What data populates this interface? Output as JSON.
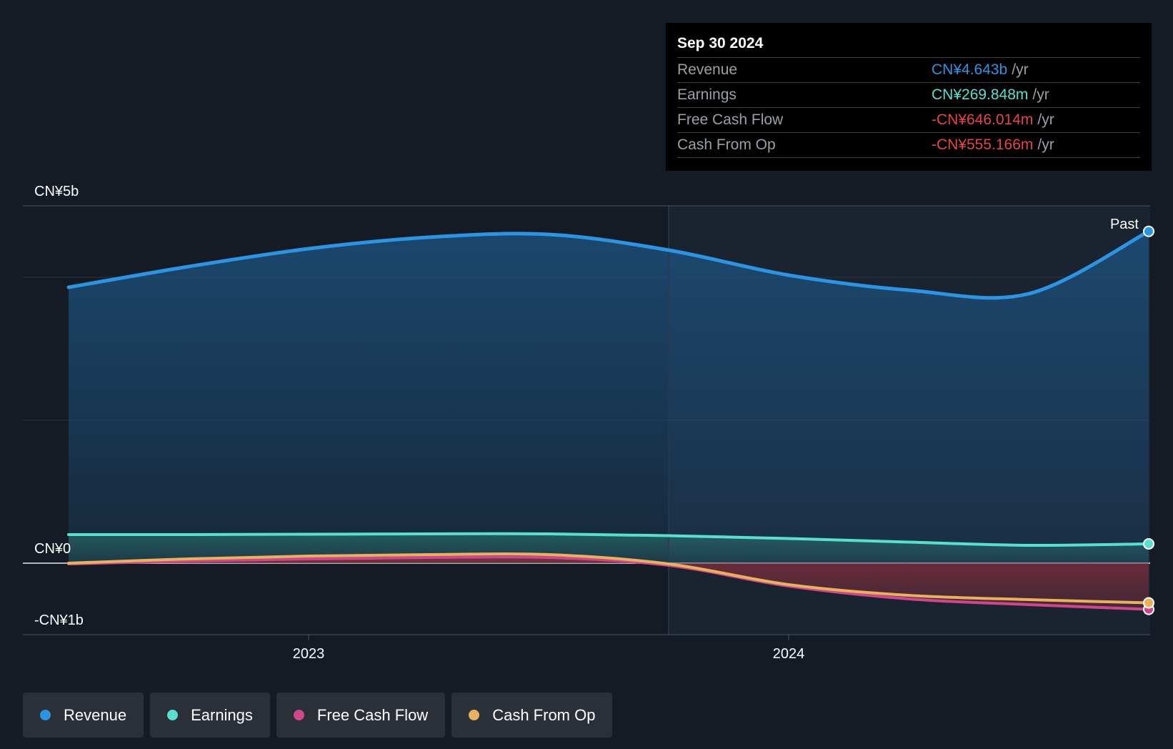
{
  "chart_data": {
    "type": "area",
    "title": "",
    "xlabel": "",
    "ylabel": "",
    "y_tick_labels": [
      "CN¥5b",
      "CN¥0",
      "-CN¥1b"
    ],
    "x_tick_labels": [
      "2023",
      "2024"
    ],
    "ylim": [
      -1000,
      5000
    ],
    "x_range": [
      "2022-06-30",
      "2024-09-30"
    ],
    "x_ticks_years": [
      2023.0,
      2024.0
    ],
    "past_label": "Past",
    "past_divider_x": 2023.75,
    "series": [
      {
        "name": "Revenue",
        "color": "#2b95e3",
        "x": [
          2022.5,
          2022.75,
          2023.0,
          2023.25,
          2023.5,
          2023.75,
          2024.0,
          2024.25,
          2024.5,
          2024.75
        ],
        "values": [
          3860,
          4150,
          4400,
          4560,
          4600,
          4380,
          4030,
          3820,
          3770,
          4643
        ]
      },
      {
        "name": "Earnings",
        "color": "#58e0cf",
        "x": [
          2022.5,
          2022.75,
          2023.0,
          2023.25,
          2023.5,
          2023.75,
          2024.0,
          2024.25,
          2024.5,
          2024.75
        ],
        "values": [
          400,
          400,
          405,
          410,
          410,
          385,
          345,
          295,
          250,
          270
        ]
      },
      {
        "name": "Free Cash Flow",
        "color": "#d0468c",
        "x": [
          2022.5,
          2022.75,
          2023.0,
          2023.25,
          2023.5,
          2023.75,
          2024.0,
          2024.25,
          2024.5,
          2024.75
        ],
        "values": [
          -10,
          30,
          60,
          80,
          80,
          -30,
          -320,
          -500,
          -580,
          -646
        ]
      },
      {
        "name": "Cash From Op",
        "color": "#e8b15c",
        "x": [
          2022.5,
          2022.75,
          2023.0,
          2023.25,
          2023.5,
          2023.75,
          2024.0,
          2024.25,
          2024.5,
          2024.75
        ],
        "values": [
          0,
          60,
          100,
          120,
          120,
          -10,
          -300,
          -450,
          -510,
          -555
        ]
      }
    ]
  },
  "tooltip": {
    "date": "Sep 30 2024",
    "rows": [
      {
        "name": "Revenue",
        "value": "CN¥4.643b",
        "unit": "/yr",
        "color": "#2b95e3"
      },
      {
        "name": "Earnings",
        "value": "CN¥269.848m",
        "unit": "/yr",
        "color": "#58e0cf"
      },
      {
        "name": "Free Cash Flow",
        "value": "-CN¥646.014m",
        "unit": "/yr",
        "color": "#e64545"
      },
      {
        "name": "Cash From Op",
        "value": "-CN¥555.166m",
        "unit": "/yr",
        "color": "#e64545"
      }
    ]
  },
  "legend": [
    {
      "label": "Revenue",
      "color": "#2b95e3"
    },
    {
      "label": "Earnings",
      "color": "#58e0cf"
    },
    {
      "label": "Free Cash Flow",
      "color": "#d0468c"
    },
    {
      "label": "Cash From Op",
      "color": "#e8b15c"
    }
  ]
}
